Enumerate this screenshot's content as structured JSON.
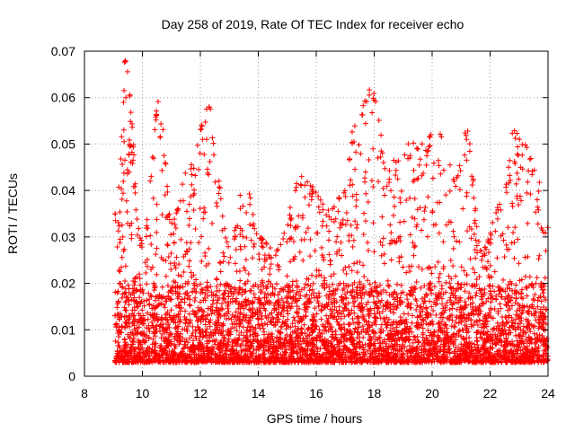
{
  "chart_data": {
    "type": "scatter",
    "title": "Day 258 of 2019, Rate Of TEC Index for receiver echo",
    "xlabel": "GPS time / hours",
    "ylabel": "ROTI / TECUs",
    "xlim": [
      8,
      24
    ],
    "ylim": [
      0,
      0.07
    ],
    "xticks": [
      "8",
      "10",
      "12",
      "14",
      "16",
      "18",
      "20",
      "22",
      "24"
    ],
    "yticks": [
      "0",
      "0.01",
      "0.02",
      "0.03",
      "0.04",
      "0.05",
      "0.06",
      "0.07"
    ],
    "grid": true,
    "marker": "+",
    "series": [
      {
        "name": "ROTI",
        "color": "#ff0000",
        "x_range": [
          9.05,
          24.0
        ],
        "typical_range": [
          0.003,
          0.02
        ],
        "envelope": [
          {
            "x": 9.1,
            "peak": 0.035
          },
          {
            "x": 9.4,
            "peak": 0.068
          },
          {
            "x": 10.0,
            "peak": 0.029
          },
          {
            "x": 10.6,
            "peak": 0.06
          },
          {
            "x": 11.0,
            "peak": 0.033
          },
          {
            "x": 11.6,
            "peak": 0.045
          },
          {
            "x": 12.3,
            "peak": 0.058
          },
          {
            "x": 13.0,
            "peak": 0.028
          },
          {
            "x": 13.6,
            "peak": 0.044
          },
          {
            "x": 14.0,
            "peak": 0.03
          },
          {
            "x": 14.6,
            "peak": 0.027
          },
          {
            "x": 15.5,
            "peak": 0.043
          },
          {
            "x": 16.5,
            "peak": 0.036
          },
          {
            "x": 17.0,
            "peak": 0.04
          },
          {
            "x": 17.3,
            "peak": 0.054
          },
          {
            "x": 17.9,
            "peak": 0.062
          },
          {
            "x": 18.5,
            "peak": 0.045
          },
          {
            "x": 19.0,
            "peak": 0.051
          },
          {
            "x": 19.6,
            "peak": 0.05
          },
          {
            "x": 20.3,
            "peak": 0.054
          },
          {
            "x": 20.8,
            "peak": 0.043
          },
          {
            "x": 21.2,
            "peak": 0.053
          },
          {
            "x": 21.7,
            "peak": 0.027
          },
          {
            "x": 22.5,
            "peak": 0.04
          },
          {
            "x": 22.8,
            "peak": 0.053
          },
          {
            "x": 23.2,
            "peak": 0.05
          },
          {
            "x": 23.6,
            "peak": 0.044
          },
          {
            "x": 24.0,
            "peak": 0.032
          }
        ]
      }
    ]
  }
}
